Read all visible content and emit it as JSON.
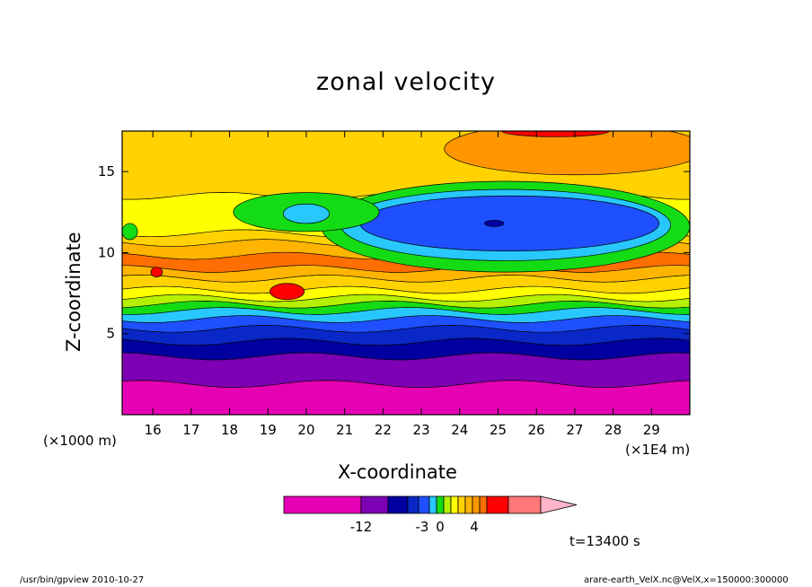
{
  "chart_data": {
    "type": "heatmap",
    "title": "zonal velocity",
    "xlabel": "X-coordinate",
    "ylabel": "Z-coordinate",
    "x_unit_left": "(×1000 m)",
    "x_unit_right": "(×1E4 m)",
    "xlim": [
      15.2,
      30.0
    ],
    "ylim": [
      0,
      17.5
    ],
    "x_ticks": [
      16,
      17,
      18,
      19,
      20,
      21,
      22,
      23,
      24,
      25,
      26,
      27,
      28,
      29
    ],
    "y_ticks": [
      5,
      10,
      15
    ],
    "colorbar": {
      "tick_labels": [
        "-12",
        "-3",
        "0",
        "4"
      ],
      "colors": [
        "#e600b4",
        "#7d00b4",
        "#0000a0",
        "#0a28c8",
        "#1e50ff",
        "#28c8ff",
        "#14dc14",
        "#b4f000",
        "#ffff00",
        "#ffd200",
        "#ffb400",
        "#ff9600",
        "#ff6e00",
        "#ff0000",
        "#ff7878",
        "#ffb4c8"
      ]
    },
    "time_label": "t=13400 s",
    "bands": [
      {
        "y_from": 0.0,
        "y_to": 1.9,
        "color": "#e600b4",
        "label": "magenta"
      },
      {
        "y_from": 1.9,
        "y_to": 3.6,
        "color": "#7d00b4",
        "label": "purple"
      },
      {
        "y_from": 3.6,
        "y_to": 4.5,
        "color": "#0000a0",
        "label": "navy"
      },
      {
        "y_from": 4.5,
        "y_to": 5.3,
        "color": "#0a28c8",
        "label": "blue"
      },
      {
        "y_from": 5.3,
        "y_to": 5.9,
        "color": "#1e50ff",
        "label": "mid-blue"
      },
      {
        "y_from": 5.9,
        "y_to": 6.4,
        "color": "#28c8ff",
        "label": "cyan"
      },
      {
        "y_from": 6.4,
        "y_to": 6.8,
        "color": "#14dc14",
        "label": "green"
      },
      {
        "y_from": 6.8,
        "y_to": 7.2,
        "color": "#b4f000",
        "label": "lime"
      },
      {
        "y_from": 7.2,
        "y_to": 7.7,
        "color": "#ffff00",
        "label": "yellow"
      },
      {
        "y_from": 7.7,
        "y_to": 8.4,
        "color": "#ffd200",
        "label": "gold"
      },
      {
        "y_from": 8.4,
        "y_to": 9.0,
        "color": "#ffb400",
        "label": "light orange"
      },
      {
        "y_from": 9.0,
        "y_to": 9.8,
        "color": "#ff6e00",
        "label": "orange"
      },
      {
        "y_from": 9.8,
        "y_to": 10.6,
        "color": "#ffb400",
        "label": "light orange"
      },
      {
        "y_from": 10.6,
        "y_to": 11.2,
        "color": "#ffd200",
        "label": "gold"
      },
      {
        "y_from": 11.2,
        "y_to": 13.5,
        "color": "#ffff00",
        "label": "yellow"
      },
      {
        "y_from": 13.5,
        "y_to": 17.5,
        "color": "#ffd200",
        "label": "gold"
      }
    ],
    "blobs": [
      {
        "cx": 25.2,
        "cy": 11.6,
        "rx": 4.8,
        "ry": 2.8,
        "color": "#14dc14",
        "label": "green upper region"
      },
      {
        "cx": 25.2,
        "cy": 11.7,
        "rx": 4.3,
        "ry": 2.2,
        "color": "#28c8ff",
        "label": "cyan core"
      },
      {
        "cx": 25.3,
        "cy": 11.8,
        "rx": 3.9,
        "ry": 1.7,
        "color": "#1e50ff",
        "label": "blue core"
      },
      {
        "cx": 24.9,
        "cy": 11.8,
        "rx": 0.25,
        "ry": 0.2,
        "color": "#0000a0",
        "label": "navy center"
      },
      {
        "cx": 20.0,
        "cy": 12.5,
        "rx": 1.9,
        "ry": 1.2,
        "color": "#14dc14",
        "label": "green patch"
      },
      {
        "cx": 20.0,
        "cy": 12.4,
        "rx": 0.6,
        "ry": 0.6,
        "color": "#28c8ff",
        "label": "cyan patch"
      },
      {
        "cx": 27.0,
        "cy": 16.4,
        "rx": 3.4,
        "ry": 1.6,
        "color": "#ff9600",
        "label": "orange top"
      },
      {
        "cx": 26.5,
        "cy": 17.5,
        "rx": 1.4,
        "ry": 0.35,
        "color": "#ff0000",
        "label": "red top"
      },
      {
        "cx": 19.5,
        "cy": 7.6,
        "rx": 0.45,
        "ry": 0.5,
        "color": "#ff0000",
        "label": "red low"
      },
      {
        "cx": 16.1,
        "cy": 8.8,
        "rx": 0.15,
        "ry": 0.3,
        "color": "#ff0000",
        "label": "red small"
      },
      {
        "cx": 15.4,
        "cy": 11.3,
        "rx": 0.2,
        "ry": 0.5,
        "color": "#14dc14",
        "label": "green left edge"
      }
    ]
  },
  "footer": {
    "left": "/usr/bin/gpview   2010-10-27",
    "right": "arare-earth_VelX.nc@VelX,x=150000:300000"
  }
}
